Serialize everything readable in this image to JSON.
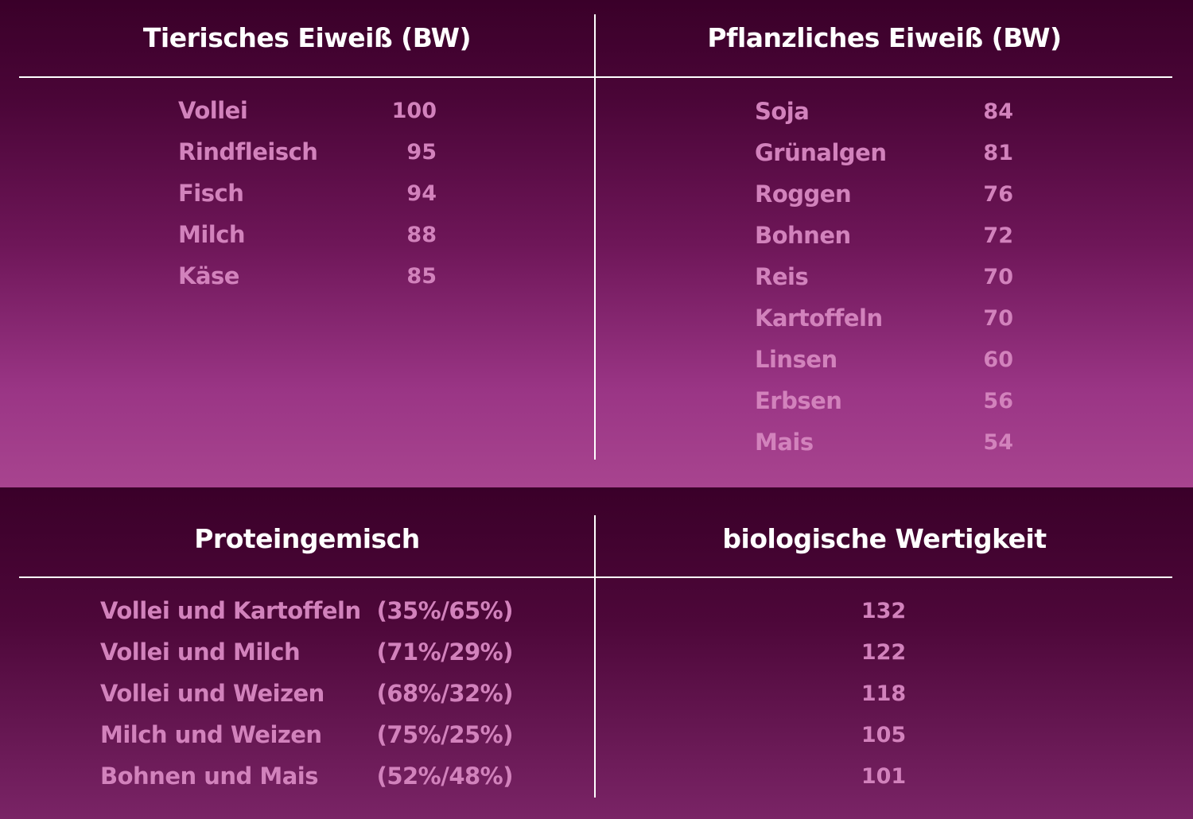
{
  "colors": {
    "background_dark": "#3a0029",
    "background_light": "#a8448f",
    "text_pink": "#d282bc",
    "header_text": "#ffffff"
  },
  "top": {
    "left_title": "Tierisches Eiweiß (BW)",
    "right_title": "Pflanzliches Eiweiß (BW)",
    "animal": [
      {
        "name": "Vollei",
        "value": "100"
      },
      {
        "name": "Rindfleisch",
        "value": "95"
      },
      {
        "name": "Fisch",
        "value": "94"
      },
      {
        "name": "Milch",
        "value": "88"
      },
      {
        "name": "Käse",
        "value": "85"
      }
    ],
    "plant": [
      {
        "name": "Soja",
        "value": "84"
      },
      {
        "name": "Grünalgen",
        "value": "81"
      },
      {
        "name": "Roggen",
        "value": "76"
      },
      {
        "name": "Bohnen",
        "value": "72"
      },
      {
        "name": "Reis",
        "value": "70"
      },
      {
        "name": "Kartoffeln",
        "value": "70"
      },
      {
        "name": "Linsen",
        "value": "60"
      },
      {
        "name": "Erbsen",
        "value": "56"
      },
      {
        "name": "Mais",
        "value": "54"
      }
    ]
  },
  "bottom": {
    "left_title": "Proteingemisch",
    "right_title": "biologische Wertigkeit",
    "mixtures": [
      {
        "name": "Vollei und Kartoffeln",
        "ratio": "(35%/65%)",
        "value": "132"
      },
      {
        "name": "Vollei und Milch",
        "ratio": "(71%/29%)",
        "value": "122"
      },
      {
        "name": "Vollei und Weizen",
        "ratio": "(68%/32%)",
        "value": "118"
      },
      {
        "name": "Milch und Weizen",
        "ratio": "(75%/25%)",
        "value": "105"
      },
      {
        "name": "Bohnen und Mais",
        "ratio": "(52%/48%)",
        "value": "101"
      }
    ]
  }
}
